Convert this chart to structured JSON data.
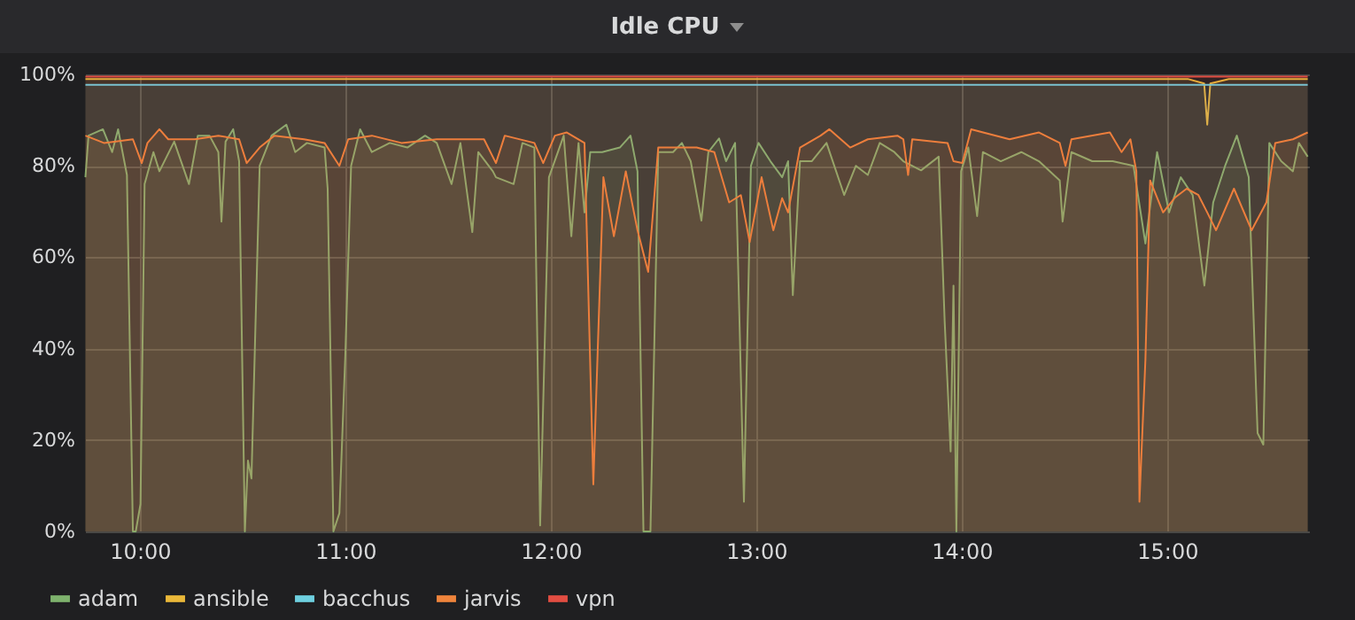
{
  "chart_data": {
    "type": "area",
    "title": "Idle CPU",
    "xlim": [
      9.733,
      15.69
    ],
    "ylim": [
      0,
      100
    ],
    "xticks": [
      {
        "value": 10,
        "label": "10:00"
      },
      {
        "value": 11,
        "label": "11:00"
      },
      {
        "value": 12,
        "label": "12:00"
      },
      {
        "value": 13,
        "label": "13:00"
      },
      {
        "value": 14,
        "label": "14:00"
      },
      {
        "value": 15,
        "label": "15:00"
      }
    ],
    "yticks": [
      {
        "value": 0,
        "label": "0%"
      },
      {
        "value": 20,
        "label": "20%"
      },
      {
        "value": 40,
        "label": "40%"
      },
      {
        "value": 60,
        "label": "60%"
      },
      {
        "value": 80,
        "label": "80%"
      },
      {
        "value": 100,
        "label": "100%"
      }
    ],
    "grid": true,
    "legend": "bottom",
    "series": [
      {
        "name": "adam",
        "color": "#7eb26d",
        "x": [
          9.735,
          9.75,
          9.82,
          9.865,
          9.894,
          9.937,
          9.966,
          9.98,
          10.003,
          10.023,
          10.066,
          10.095,
          10.167,
          10.239,
          10.282,
          10.339,
          10.382,
          10.397,
          10.417,
          10.454,
          10.483,
          10.511,
          10.526,
          10.543,
          10.583,
          10.641,
          10.713,
          10.756,
          10.813,
          10.899,
          10.914,
          10.942,
          10.971,
          11.0,
          11.028,
          11.072,
          11.129,
          11.216,
          11.302,
          11.388,
          11.445,
          11.517,
          11.56,
          11.618,
          11.647,
          11.718,
          11.733,
          11.819,
          11.862,
          11.92,
          11.948,
          11.991,
          12.063,
          12.1,
          12.135,
          12.164,
          12.192,
          12.25,
          12.336,
          12.388,
          12.422,
          12.451,
          12.485,
          12.523,
          12.595,
          12.638,
          12.681,
          12.733,
          12.767,
          12.819,
          12.853,
          12.897,
          12.94,
          12.974,
          13.011,
          13.069,
          13.126,
          13.155,
          13.178,
          13.213,
          13.27,
          13.342,
          13.428,
          13.485,
          13.543,
          13.601,
          13.672,
          13.716,
          13.802,
          13.888,
          13.917,
          13.946,
          13.96,
          13.974,
          13.997,
          14.032,
          14.075,
          14.103,
          14.19,
          14.29,
          14.376,
          14.477,
          14.491,
          14.534,
          14.635,
          14.735,
          14.836,
          14.894,
          14.951,
          15.009,
          15.066,
          15.124,
          15.181,
          15.224,
          15.282,
          15.339,
          15.397,
          15.44,
          15.468,
          15.497,
          15.555,
          15.612,
          15.641,
          15.684
        ],
        "values": [
          77.5,
          86.6,
          88,
          83,
          88,
          78,
          0,
          0,
          6,
          76,
          83,
          78.8,
          85.3,
          76,
          86.6,
          86.6,
          83,
          67.8,
          85.3,
          88,
          81,
          0,
          15.5,
          11.6,
          80,
          86.6,
          89,
          83,
          85,
          84,
          75,
          0,
          4,
          38.7,
          80,
          88,
          83,
          85,
          84,
          86.6,
          85,
          76,
          85,
          65.5,
          83,
          78.8,
          77.5,
          76,
          85,
          84,
          1.3,
          77.5,
          86.6,
          64.6,
          85,
          69.8,
          83,
          83,
          84,
          86.6,
          78.8,
          0,
          0,
          83,
          83,
          85,
          81,
          68,
          83,
          86,
          81,
          85,
          6.5,
          80,
          85,
          81,
          77.5,
          81,
          51.7,
          81,
          81,
          85,
          73.6,
          80,
          78,
          85,
          83,
          81,
          79,
          82,
          46,
          17.5,
          53.8,
          0,
          78.8,
          84,
          69,
          83,
          81,
          83,
          81,
          76.8,
          67.8,
          83,
          81,
          81,
          80,
          63,
          83,
          69.8,
          77.5,
          73.6,
          53.8,
          72,
          80,
          86.6,
          77.5,
          21.5,
          19,
          85,
          81,
          78.8,
          85,
          82
        ]
      },
      {
        "name": "ansible",
        "color": "#eab839",
        "x": [
          9.735,
          10.5,
          11.5,
          12.5,
          13.5,
          14.5,
          15.1,
          15.18,
          15.195,
          15.21,
          15.3,
          15.684
        ],
        "values": [
          99,
          99,
          99,
          99,
          99,
          99,
          99,
          98,
          89,
          98,
          99,
          99
        ]
      },
      {
        "name": "bacchus",
        "color": "#6ed0e0",
        "x": [
          9.735,
          10.5,
          11.5,
          12.5,
          13.5,
          14.5,
          15.684
        ],
        "values": [
          97.7,
          97.7,
          97.7,
          97.7,
          97.7,
          97.7,
          97.7
        ]
      },
      {
        "name": "jarvis",
        "color": "#ef843c",
        "x": [
          9.735,
          9.825,
          9.966,
          10.009,
          10.037,
          10.095,
          10.138,
          10.267,
          10.382,
          10.483,
          10.52,
          10.583,
          10.655,
          10.799,
          10.899,
          10.971,
          11.014,
          11.129,
          11.273,
          11.445,
          11.56,
          11.675,
          11.733,
          11.776,
          11.92,
          11.963,
          12.02,
          12.078,
          12.164,
          12.207,
          12.256,
          12.307,
          12.365,
          12.422,
          12.474,
          12.523,
          12.71,
          12.796,
          12.868,
          12.925,
          12.968,
          13.026,
          13.083,
          13.126,
          13.155,
          13.213,
          13.313,
          13.356,
          13.457,
          13.543,
          13.687,
          13.716,
          13.739,
          13.759,
          13.931,
          13.96,
          14.003,
          14.046,
          14.233,
          14.376,
          14.477,
          14.505,
          14.534,
          14.721,
          14.778,
          14.821,
          14.85,
          14.865,
          14.894,
          14.917,
          14.98,
          15.037,
          15.095,
          15.152,
          15.195,
          15.238,
          15.325,
          15.411,
          15.483,
          15.526,
          15.612,
          15.684
        ],
        "values": [
          86.6,
          85,
          85.8,
          80.6,
          85,
          88,
          85.8,
          85.8,
          86.6,
          85.8,
          80.6,
          84,
          86.6,
          85.8,
          85,
          80,
          85.8,
          86.6,
          85,
          85.8,
          85.8,
          85.8,
          80.6,
          86.6,
          85,
          80.6,
          86.6,
          87.3,
          85,
          10.3,
          77.5,
          64.6,
          78.8,
          65.9,
          56.8,
          84,
          84,
          83,
          72,
          73.6,
          63.3,
          77.5,
          65.9,
          72.9,
          69.8,
          84,
          86.6,
          88,
          84,
          85.8,
          86.6,
          85.8,
          78,
          85.8,
          85,
          81,
          80.6,
          88,
          85.8,
          87.3,
          85,
          80,
          85.8,
          87.3,
          83,
          85.8,
          78.8,
          6.5,
          37.5,
          76.8,
          69.8,
          73,
          75,
          73.6,
          69.8,
          65.9,
          75,
          65.9,
          72,
          85,
          85.8,
          87.3
        ]
      },
      {
        "name": "vpn",
        "color": "#e24d42",
        "x": [
          9.735,
          10.5,
          11.5,
          12.5,
          13.5,
          14.5,
          15.684
        ],
        "values": [
          99.5,
          99.5,
          99.5,
          99.5,
          99.5,
          99.5,
          99.5
        ]
      }
    ]
  }
}
